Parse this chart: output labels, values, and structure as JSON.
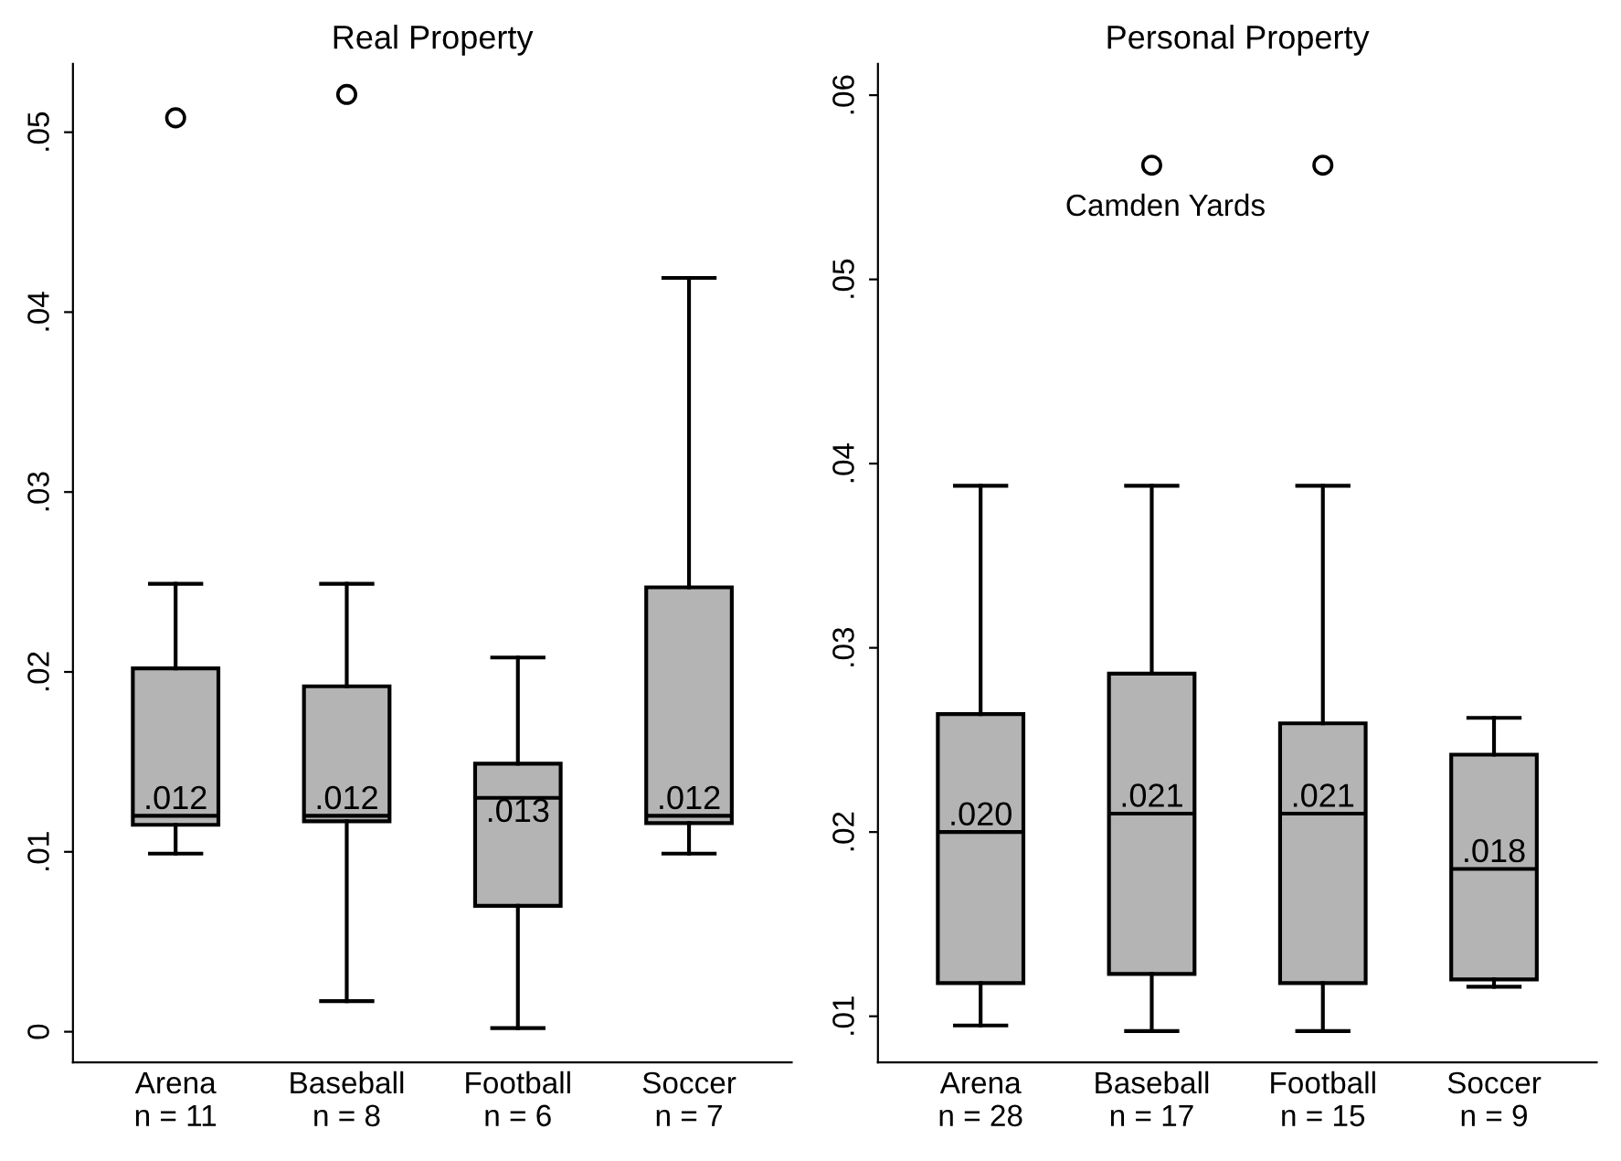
{
  "chart_data": [
    {
      "type": "box",
      "title": "Real Property",
      "categories": [
        "Arena\nn = 11",
        "Baseball\nn = 8",
        "Football\nn = 6",
        "Soccer\nn = 7"
      ],
      "color": "#b4b4b4",
      "ylim": [
        -0.0017,
        0.0538
      ],
      "yticks": [
        {
          "value": 0,
          "label": "0"
        },
        {
          "value": 0.01,
          "label": ".01"
        },
        {
          "value": 0.02,
          "label": ".02"
        },
        {
          "value": 0.03,
          "label": ".03"
        },
        {
          "value": 0.04,
          "label": ".04"
        },
        {
          "value": 0.05,
          "label": ".05"
        }
      ],
      "grid": false,
      "marker": "circle",
      "boxes": [
        {
          "low": 0.0099,
          "q1": 0.0115,
          "median": 0.012,
          "q3": 0.0202,
          "high": 0.0249,
          "outliers": [
            0.0508
          ]
        },
        {
          "low": 0.0017,
          "q1": 0.0117,
          "median": 0.012,
          "q3": 0.0192,
          "high": 0.0249,
          "outliers": [
            0.0521
          ]
        },
        {
          "low": 0.0002,
          "q1": 0.007,
          "median": 0.013,
          "q3": 0.0149,
          "high": 0.0208
        },
        {
          "low": 0.0099,
          "q1": 0.0116,
          "median": 0.012,
          "q3": 0.0247,
          "high": 0.0419
        }
      ],
      "value_labels": [
        ".012",
        ".012",
        ".013",
        ".012"
      ]
    },
    {
      "type": "box",
      "title": "Personal Property",
      "categories": [
        "Arena\nn = 28",
        "Baseball\nn = 17",
        "Football\nn = 15",
        "Soccer\nn = 9"
      ],
      "color": "#b4b4b4",
      "ylim": [
        0.0075,
        0.0617
      ],
      "yticks": [
        {
          "value": 0.01,
          "label": ".01"
        },
        {
          "value": 0.02,
          "label": ".02"
        },
        {
          "value": 0.03,
          "label": ".03"
        },
        {
          "value": 0.04,
          "label": ".04"
        },
        {
          "value": 0.05,
          "label": ".05"
        },
        {
          "value": 0.06,
          "label": ".06"
        }
      ],
      "grid": false,
      "marker": "circle",
      "boxes": [
        {
          "low": 0.0095,
          "q1": 0.0118,
          "median": 0.02,
          "q3": 0.0264,
          "high": 0.0388
        },
        {
          "low": 0.0092,
          "q1": 0.0123,
          "median": 0.021,
          "q3": 0.0286,
          "high": 0.0388,
          "outliers": [
            0.0562
          ]
        },
        {
          "low": 0.0092,
          "q1": 0.0118,
          "median": 0.021,
          "q3": 0.0259,
          "high": 0.0388,
          "outliers": [
            0.0562
          ]
        },
        {
          "low": 0.0116,
          "q1": 0.012,
          "median": 0.018,
          "q3": 0.0242,
          "high": 0.0262
        }
      ],
      "value_labels": [
        ".020",
        ".021",
        ".021",
        ".018"
      ],
      "annotations": [
        "Camden Yards"
      ]
    }
  ]
}
